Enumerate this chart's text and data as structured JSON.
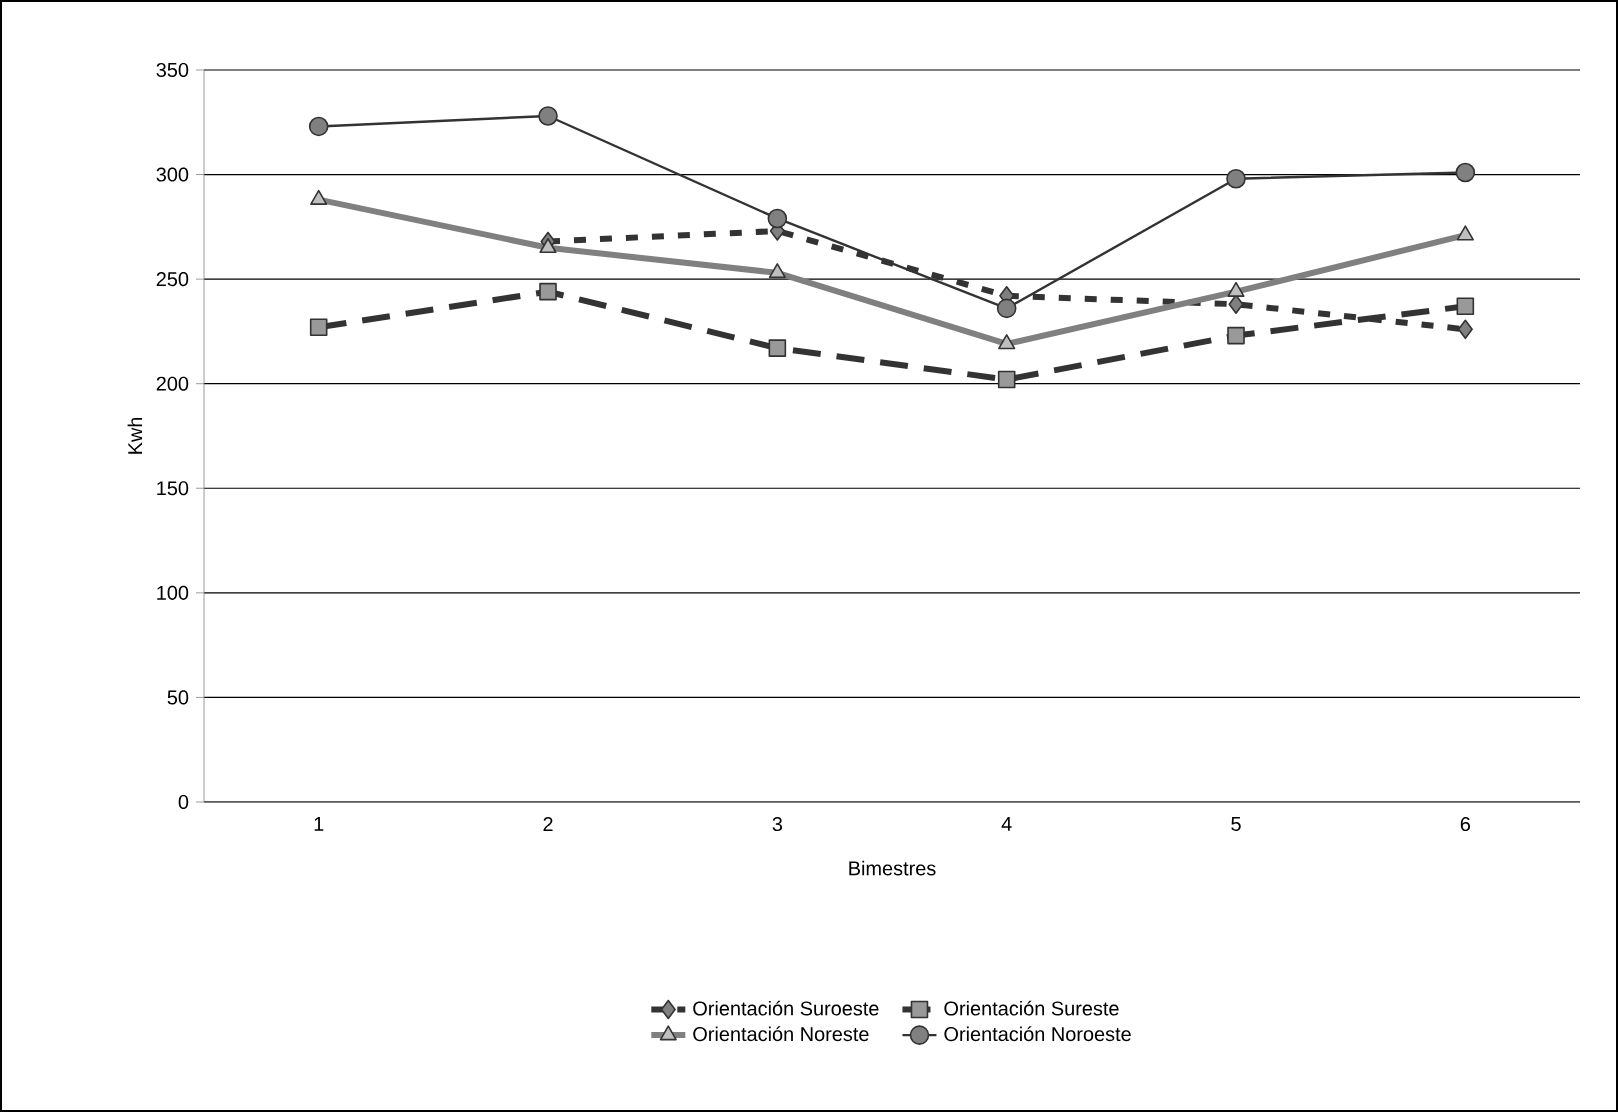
{
  "chart_data": {
    "type": "line",
    "xlabel": "Bimestres",
    "ylabel": "Kwh",
    "categories": [
      "1",
      "2",
      "3",
      "4",
      "5",
      "6"
    ],
    "series": [
      {
        "name": "Orientación Suroeste",
        "color": "#333333",
        "marker": "diamond",
        "line_style": "dotted",
        "values": [
          null,
          268,
          273,
          242,
          238,
          226
        ]
      },
      {
        "name": "Orientación Sureste",
        "color": "#333333",
        "marker": "square",
        "line_style": "dashed",
        "values": [
          227,
          244,
          217,
          202,
          223,
          237
        ]
      },
      {
        "name": "Orientación Noreste",
        "color": "#808080",
        "marker": "triangle",
        "line_style": "solid",
        "values": [
          288,
          265,
          253,
          219,
          244,
          271
        ]
      },
      {
        "name": "Orientación Noroeste",
        "color": "#333333",
        "marker": "circle",
        "line_style": "solid",
        "values": [
          323,
          328,
          279,
          236,
          298,
          301
        ]
      }
    ],
    "ylim": [
      0,
      350
    ],
    "yticks": [
      0,
      50,
      100,
      150,
      200,
      250,
      300,
      350
    ],
    "grid": "y",
    "legend": "bottom"
  }
}
